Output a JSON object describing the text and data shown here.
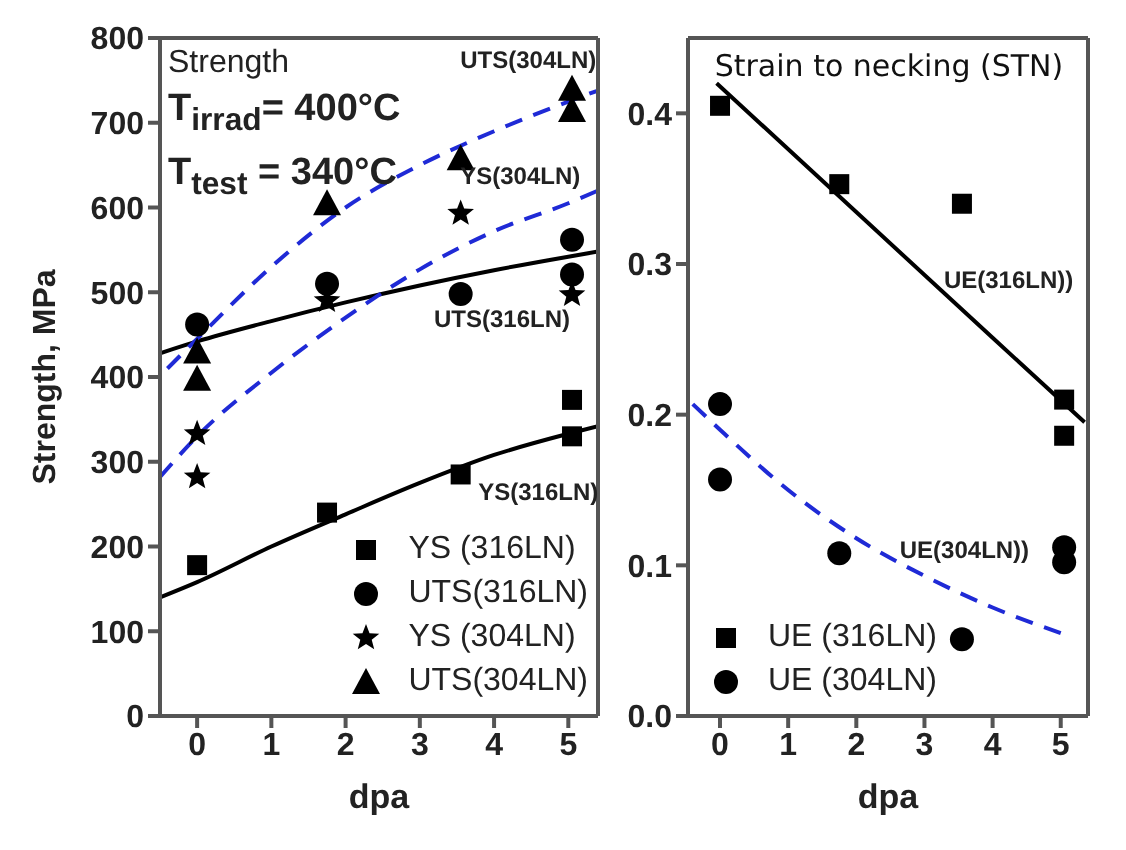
{
  "chart_data": [
    {
      "type": "scatter",
      "xlabel": "dpa",
      "ylabel": "Strength, MPa",
      "xlim": [
        -0.5,
        5.4
      ],
      "xticks": [
        0,
        1,
        2,
        3,
        4,
        5
      ],
      "ylim": [
        0,
        800
      ],
      "yticks": [
        0,
        100,
        200,
        300,
        400,
        500,
        600,
        700,
        800
      ],
      "grid": false,
      "legend": "bottom right",
      "annotations": [
        "Strength",
        "T$_{irrad}$= 400°C",
        "T$_{test}$ = 340°C",
        {
          "text": "UTS(304LN)",
          "x": 5,
          "y": 725
        },
        {
          "text": "YS(304LN)",
          "x": 5,
          "y": 605
        },
        {
          "text": "UTS(316LN)",
          "x": 4,
          "y": 526
        },
        {
          "text": "YS(316LN)",
          "x": 5,
          "y": 333
        }
      ],
      "series": [
        {
          "name": "YS (316LN)",
          "marker": "square",
          "color": "#000000",
          "x": [
            0,
            1.75,
            3.55,
            5.05,
            5.05
          ],
          "values": [
            178,
            240,
            285,
            373,
            330
          ]
        },
        {
          "name": "UTS(316LN)",
          "marker": "circle",
          "color": "#000000",
          "x": [
            0,
            1.75,
            3.55,
            5.05,
            5.05
          ],
          "values": [
            462,
            510,
            498,
            562,
            521
          ]
        },
        {
          "name": "YS (304LN)",
          "marker": "star",
          "color": "#000000",
          "x": [
            0,
            0,
            1.75,
            3.55,
            5.05
          ],
          "values": [
            333,
            282,
            490,
            593,
            497
          ]
        },
        {
          "name": "UTS(304LN)",
          "marker": "triangle",
          "color": "#000000",
          "x": [
            0,
            0,
            1.75,
            3.55,
            5.05,
            5.05
          ],
          "values": [
            430,
            398,
            605,
            658,
            740,
            715
          ]
        },
        {
          "type": "line",
          "line_style": "solid",
          "color": "#000000",
          "x": [
            -0.5,
            0,
            1,
            2,
            3,
            4,
            5,
            5.4
          ],
          "values": [
            140,
            158,
            200,
            238,
            275,
            308,
            333,
            342
          ]
        },
        {
          "type": "line",
          "line_style": "solid",
          "color": "#000000",
          "x": [
            -0.5,
            0,
            1,
            2,
            3,
            4,
            5,
            5.4
          ],
          "values": [
            428,
            442,
            466,
            488,
            508,
            526,
            542,
            548
          ]
        },
        {
          "type": "line",
          "line_style": "dashed",
          "color": "#1f2ad6",
          "x": [
            -0.5,
            0,
            1,
            2,
            3,
            4,
            5,
            5.4
          ],
          "values": [
            282,
            330,
            405,
            470,
            527,
            572,
            605,
            620
          ]
        },
        {
          "type": "line",
          "line_style": "dashed",
          "color": "#1f2ad6",
          "x": [
            -0.4,
            0,
            1,
            2,
            3,
            4,
            5,
            5.4
          ],
          "values": [
            410,
            445,
            530,
            600,
            650,
            690,
            725,
            738
          ]
        }
      ]
    },
    {
      "type": "scatter",
      "title": "Strain to necking (STN)",
      "xlabel": "dpa",
      "xlim": [
        -0.47,
        5.4
      ],
      "xticks": [
        0,
        1,
        2,
        3,
        4,
        5
      ],
      "ylim": [
        0,
        0.45
      ],
      "yticks": [
        {
          "value": 0,
          "label": "0.0"
        },
        0.1,
        0.2,
        0.3,
        0.4
      ],
      "grid": false,
      "legend": "bottom left",
      "annotations": [
        {
          "text": "UE(316LN))",
          "x": 4,
          "y": 0.251
        },
        {
          "text": "UE(304LN))",
          "x": 3,
          "y": 0.093
        }
      ],
      "series": [
        {
          "name": "UE (316LN)",
          "marker": "square",
          "color": "#000000",
          "x": [
            0,
            1.75,
            3.55,
            5.05,
            5.05
          ],
          "values": [
            0.405,
            0.353,
            0.34,
            0.21,
            0.186
          ]
        },
        {
          "name": "UE (304LN)",
          "marker": "circle",
          "color": "#000000",
          "x": [
            0,
            0,
            1.75,
            3.55,
            5.05,
            5.05
          ],
          "values": [
            0.207,
            0.157,
            0.108,
            0.051,
            0.112,
            0.102
          ]
        },
        {
          "type": "line",
          "line_style": "solid",
          "color": "#000000",
          "x": [
            -0.05,
            4,
            5.35
          ],
          "values": [
            0.42,
            0.251,
            0.195
          ]
        },
        {
          "type": "line",
          "line_style": "dashed",
          "color": "#1f2ad6",
          "x": [
            -0.4,
            0,
            1,
            2,
            3,
            4,
            5
          ],
          "values": [
            0.207,
            0.19,
            0.15,
            0.118,
            0.093,
            0.072,
            0.055
          ]
        }
      ]
    }
  ]
}
